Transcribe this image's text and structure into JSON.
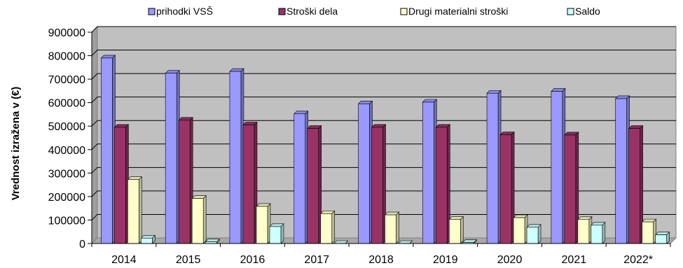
{
  "chart_data": {
    "type": "bar",
    "title": "",
    "xlabel": "",
    "ylabel": "Vrednost izražena v (€)",
    "categories": [
      "2014",
      "2015",
      "2016",
      "2017",
      "2018",
      "2019",
      "2020",
      "2021",
      "2022*"
    ],
    "series": [
      {
        "name": "prihodki VSŠ",
        "color": "#9999ff",
        "values": [
          790000,
          725000,
          733000,
          552000,
          595000,
          602000,
          640000,
          648000,
          617000
        ]
      },
      {
        "name": "Stroški dela",
        "color": "#993366",
        "values": [
          495000,
          525000,
          505000,
          490000,
          495000,
          495000,
          463000,
          462000,
          490000
        ]
      },
      {
        "name": "Drugi materialni stroški",
        "color": "#ffffcc",
        "values": [
          272000,
          192000,
          158000,
          127000,
          122000,
          103000,
          110000,
          102000,
          92000
        ]
      },
      {
        "name": "Saldo",
        "color": "#ccffff",
        "values": [
          23000,
          7000,
          72000,
          0,
          0,
          4000,
          69000,
          78000,
          37000
        ]
      }
    ],
    "ylim": [
      0,
      900000
    ],
    "yticks": [
      "0",
      "100000",
      "200000",
      "300000",
      "400000",
      "500000",
      "600000",
      "700000",
      "800000",
      "900000"
    ],
    "grid": true,
    "legend_position": "top",
    "plot_background": "#c0c0c0"
  }
}
